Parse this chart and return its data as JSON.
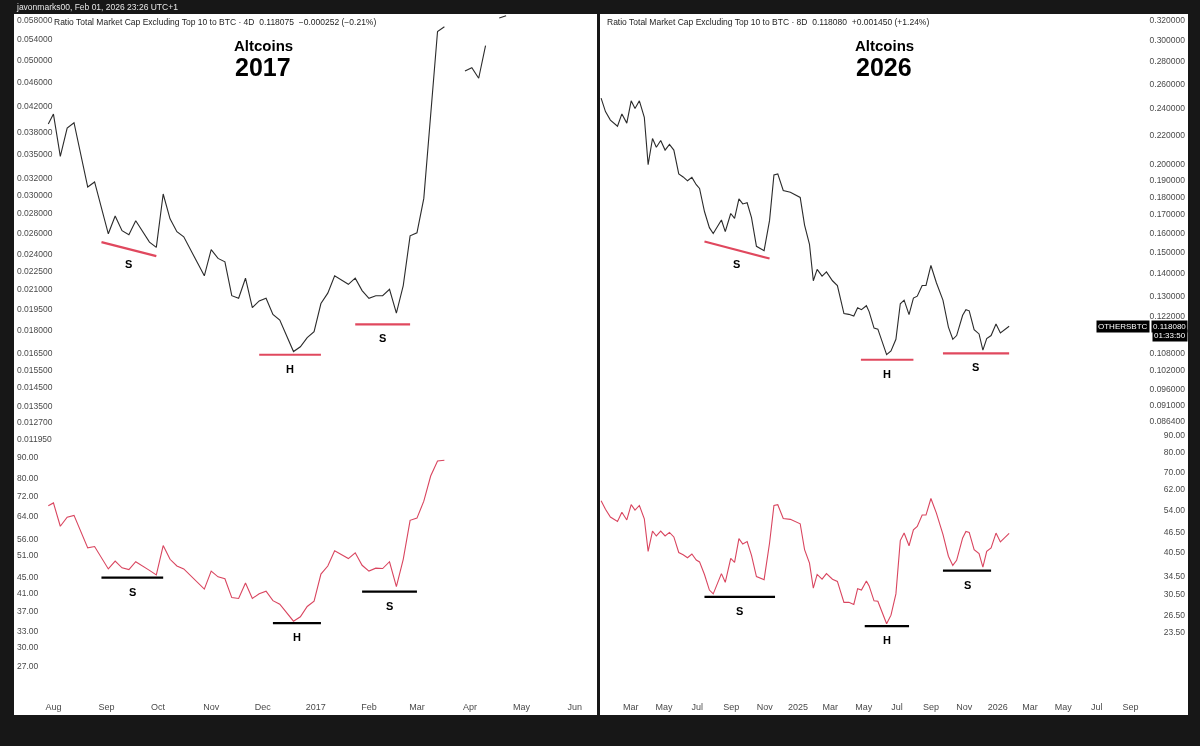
{
  "chart_data": [
    {
      "type": "line",
      "title": "Altcoins",
      "subtitle": "2017",
      "log": true,
      "grid": false,
      "tick_labels": "y",
      "xlim": [
        "2016-07-09",
        "2017-06-14"
      ],
      "ylim": [
        0.01162,
        0.0594
      ],
      "yticks": [
        {
          "value": 0.058,
          "label": "0.058000"
        },
        {
          "value": 0.054,
          "label": "0.054000"
        },
        {
          "value": 0.05,
          "label": "0.050000"
        },
        {
          "value": 0.046,
          "label": "0.046000"
        },
        {
          "value": 0.042,
          "label": "0.042000"
        },
        {
          "value": 0.038,
          "label": "0.038000"
        },
        {
          "value": 0.035,
          "label": "0.035000"
        },
        {
          "value": 0.032,
          "label": "0.032000"
        },
        {
          "value": 0.03,
          "label": "0.030000"
        },
        {
          "value": 0.028,
          "label": "0.028000"
        },
        {
          "value": 0.026,
          "label": "0.026000"
        },
        {
          "value": 0.024,
          "label": "0.024000"
        },
        {
          "value": 0.0225,
          "label": "0.022500"
        },
        {
          "value": 0.021,
          "label": "0.021000"
        },
        {
          "value": 0.0195,
          "label": "0.019500"
        },
        {
          "value": 0.018,
          "label": "0.018000"
        },
        {
          "value": 0.0165,
          "label": "0.016500"
        },
        {
          "value": 0.0155,
          "label": "0.015500"
        },
        {
          "value": 0.0145,
          "label": "0.014500"
        },
        {
          "value": 0.0135,
          "label": "0.013500"
        },
        {
          "value": 0.0127,
          "label": "0.012700"
        },
        {
          "value": 0.01195,
          "label": "0.011950"
        }
      ],
      "x": [
        "2016-07-29",
        "2016-08-01",
        "2016-08-05",
        "2016-08-09",
        "2016-08-13",
        "2016-08-21",
        "2016-08-25",
        "2016-09-02",
        "2016-09-06",
        "2016-09-10",
        "2016-09-14",
        "2016-09-18",
        "2016-09-26",
        "2016-09-30",
        "2016-10-04",
        "2016-10-08",
        "2016-10-12",
        "2016-10-16",
        "2016-10-28",
        "2016-11-01",
        "2016-11-05",
        "2016-11-09",
        "2016-11-13",
        "2016-11-17",
        "2016-11-21",
        "2016-11-25",
        "2016-11-29",
        "2016-12-03",
        "2016-12-07",
        "2016-12-11",
        "2016-12-19",
        "2016-12-23",
        "2016-12-27",
        "2016-12-31",
        "2017-01-04",
        "2017-01-08",
        "2017-01-12",
        "2017-01-20",
        "2017-01-24",
        "2017-01-28",
        "2017-02-01",
        "2017-02-05",
        "2017-02-09",
        "2017-02-13",
        "2017-02-17",
        "2017-02-21",
        "2017-02-25",
        "2017-03-01",
        "2017-03-05",
        "2017-03-13",
        "2017-03-17",
        "2017-03-21",
        "2017-03-25",
        "2017-03-29",
        "2017-04-02",
        "2017-04-06",
        "2017-04-10",
        "2017-04-14",
        "2017-04-18",
        "2017-04-22"
      ],
      "series": [
        {
          "color": "#2b2b2b",
          "values": [
            0.0392,
            0.0407,
            0.0347,
            0.0386,
            0.0394,
            0.0309,
            0.0315,
            0.0259,
            0.0277,
            0.0262,
            0.0258,
            0.0272,
            0.0251,
            0.0246,
            0.0301,
            0.0274,
            0.0261,
            0.0256,
            0.0221,
            0.0244,
            0.0236,
            0.0233,
            0.0205,
            0.0203,
            0.0219,
            0.0196,
            0.0201,
            0.0203,
            0.0191,
            0.0187,
            0.0166,
            0.0169,
            0.0175,
            0.0179,
            0.0199,
            0.0207,
            0.0221,
            0.0214,
            0.0219,
            0.0209,
            0.0203,
            0.0205,
            0.0205,
            0.021,
            0.0192,
            0.0213,
            0.0257,
            0.026,
            0.0296,
            0.0556,
            0.0566,
            null,
            null,
            0.0479,
            0.0485,
            0.0466,
            0.0527,
            null,
            0.0585,
            0.059
          ]
        },
        {
          "type": "line",
          "color": "#e0485e",
          "x": [
            "2016-08-29",
            "2016-09-30"
          ],
          "values": [
            0.0251,
            0.0238
          ]
        },
        {
          "type": "line",
          "color": "#e0485e",
          "x": [
            "2016-11-29",
            "2017-01-04"
          ],
          "values": [
            0.0164,
            0.0164
          ]
        },
        {
          "type": "line",
          "color": "#e0485e",
          "x": [
            "2017-01-24",
            "2017-02-25"
          ],
          "values": [
            0.0184,
            0.0184
          ]
        }
      ],
      "annotations": [
        "javonmarks00, Feb 01, 2026 23:26 UTC+1",
        "Ratio Total Market Cap Excluding Top 10 to BTC · 4D  0.118075  −0.000252 (−0.21%)",
        {
          "text": "S",
          "x": "2016-09-14",
          "y": 0.0244
        },
        {
          "text": "H",
          "x": "2016-12-17",
          "y": 0.0164
        },
        {
          "text": "S",
          "x": "2017-02-09",
          "y": 0.0184
        }
      ]
    },
    {
      "type": "line",
      "log": true,
      "grid": false,
      "xlim": [
        "2016-07-09",
        "2017-06-14"
      ],
      "ylim": [
        20.3,
        96
      ],
      "xticks": [
        {
          "value": "2016-08-01",
          "label": "Aug"
        },
        {
          "value": "2016-09-01",
          "label": "Sep"
        },
        {
          "value": "2016-10-01",
          "label": "Oct"
        },
        {
          "value": "2016-11-01",
          "label": "Nov"
        },
        {
          "value": "2016-12-01",
          "label": "Dec"
        },
        {
          "value": "2017-01-01",
          "label": "2017"
        },
        {
          "value": "2017-02-01",
          "label": "Feb"
        },
        {
          "value": "2017-03-01",
          "label": "Mar"
        },
        {
          "value": "2017-04-01",
          "label": "Apr"
        },
        {
          "value": "2017-05-01",
          "label": "May"
        },
        {
          "value": "2017-06-01",
          "label": "Jun"
        }
      ],
      "yticks": [
        {
          "value": 90,
          "label": "90.00"
        },
        {
          "value": 80,
          "label": "80.00"
        },
        {
          "value": 72,
          "label": "72.00"
        },
        {
          "value": 64,
          "label": "64.00"
        },
        {
          "value": 56,
          "label": "56.00"
        },
        {
          "value": 51,
          "label": "51.00"
        },
        {
          "value": 45,
          "label": "45.00"
        },
        {
          "value": 41,
          "label": "41.00"
        },
        {
          "value": 37,
          "label": "37.00"
        },
        {
          "value": 33,
          "label": "33.00"
        },
        {
          "value": 30,
          "label": "30.00"
        },
        {
          "value": 27,
          "label": "27.00"
        }
      ],
      "x": [
        "2016-07-29",
        "2016-08-01",
        "2016-08-05",
        "2016-08-09",
        "2016-08-13",
        "2016-08-21",
        "2016-08-25",
        "2016-09-02",
        "2016-09-06",
        "2016-09-10",
        "2016-09-14",
        "2016-09-18",
        "2016-09-26",
        "2016-09-30",
        "2016-10-04",
        "2016-10-08",
        "2016-10-12",
        "2016-10-16",
        "2016-10-28",
        "2016-11-01",
        "2016-11-05",
        "2016-11-09",
        "2016-11-13",
        "2016-11-17",
        "2016-11-21",
        "2016-11-25",
        "2016-11-29",
        "2016-12-03",
        "2016-12-07",
        "2016-12-11",
        "2016-12-19",
        "2016-12-23",
        "2016-12-27",
        "2016-12-31",
        "2017-01-04",
        "2017-01-08",
        "2017-01-12",
        "2017-01-20",
        "2017-01-24",
        "2017-01-28",
        "2017-02-01",
        "2017-02-05",
        "2017-02-09",
        "2017-02-13",
        "2017-02-17",
        "2017-02-21",
        "2017-02-25",
        "2017-03-01",
        "2017-03-05",
        "2017-03-09",
        "2017-03-13",
        "2017-03-17"
      ],
      "series": [
        {
          "color": "#d9455f",
          "values": [
            68.0,
            69.1,
            60.4,
            63.6,
            64.3,
            53.3,
            53.7,
            47.2,
            49.4,
            47.5,
            47.0,
            49.2,
            46.8,
            45.6,
            54.0,
            49.9,
            48.0,
            47.2,
            42.0,
            46.6,
            45.1,
            44.6,
            40.0,
            39.8,
            43.5,
            39.8,
            40.9,
            41.5,
            39.3,
            38.5,
            34.9,
            35.8,
            38.0,
            39.2,
            45.8,
            48.0,
            52.4,
            50.1,
            51.8,
            48.2,
            46.6,
            47.4,
            47.3,
            49.2,
            42.6,
            49.9,
            62.5,
            63.3,
            69.8,
            80.7,
            88.0,
            88.4
          ]
        },
        {
          "type": "line",
          "color": "#000000",
          "x": [
            "2016-08-29",
            "2016-10-04"
          ],
          "values": [
            44.9,
            44.9
          ]
        },
        {
          "type": "line",
          "color": "#000000",
          "x": [
            "2016-12-07",
            "2017-01-04"
          ],
          "values": [
            34.5,
            34.5
          ]
        },
        {
          "type": "line",
          "color": "#000000",
          "x": [
            "2017-01-28",
            "2017-03-01"
          ],
          "values": [
            41.4,
            41.4
          ]
        }
      ],
      "annotations": [
        {
          "text": "S",
          "x": "2016-09-16",
          "y": 44.9
        },
        {
          "text": "H",
          "x": "2016-12-21",
          "y": 34.5
        },
        {
          "text": "S",
          "x": "2017-02-13",
          "y": 41.4
        }
      ]
    },
    {
      "type": "line",
      "title": "Altcoins",
      "subtitle": "2026",
      "log": true,
      "grid": false,
      "tick_labels": "y",
      "xlim": [
        "2024-01-05",
        "2026-12-15"
      ],
      "ylim": [
        0.0845,
        0.3268
      ],
      "yticks": [
        {
          "value": 0.32,
          "label": "0.320000"
        },
        {
          "value": 0.3,
          "label": "0.300000"
        },
        {
          "value": 0.28,
          "label": "0.280000"
        },
        {
          "value": 0.26,
          "label": "0.260000"
        },
        {
          "value": 0.24,
          "label": "0.240000"
        },
        {
          "value": 0.22,
          "label": "0.220000"
        },
        {
          "value": 0.2,
          "label": "0.200000"
        },
        {
          "value": 0.19,
          "label": "0.190000"
        },
        {
          "value": 0.18,
          "label": "0.180000"
        },
        {
          "value": 0.17,
          "label": "0.170000"
        },
        {
          "value": 0.16,
          "label": "0.160000"
        },
        {
          "value": 0.15,
          "label": "0.150000"
        },
        {
          "value": 0.14,
          "label": "0.140000"
        },
        {
          "value": 0.13,
          "label": "0.130000"
        },
        {
          "value": 0.122,
          "label": "0.122000"
        },
        {
          "value": 0.108,
          "label": "0.108000"
        },
        {
          "value": 0.102,
          "label": "0.102000"
        },
        {
          "value": 0.096,
          "label": "0.096000"
        },
        {
          "value": 0.091,
          "label": "0.091000"
        },
        {
          "value": 0.0864,
          "label": "0.086400"
        }
      ],
      "x": [
        "2024-01-07",
        "2024-01-15",
        "2024-01-24",
        "2024-02-06",
        "2024-02-14",
        "2024-02-23",
        "2024-03-02",
        "2024-03-09",
        "2024-03-17",
        "2024-03-26",
        "2024-04-02",
        "2024-04-10",
        "2024-04-17",
        "2024-04-25",
        "2024-05-03",
        "2024-05-11",
        "2024-05-19",
        "2024-05-28",
        "2024-06-05",
        "2024-06-13",
        "2024-06-21",
        "2024-06-29",
        "2024-07-05",
        "2024-07-14",
        "2024-07-23",
        "2024-07-30",
        "2024-08-14",
        "2024-08-21",
        "2024-08-31",
        "2024-09-07",
        "2024-09-15",
        "2024-09-22",
        "2024-09-30",
        "2024-10-08",
        "2024-10-17",
        "2024-10-31",
        "2024-11-10",
        "2024-11-18",
        "2024-11-25",
        "2024-12-05",
        "2024-12-18",
        "2025-01-05",
        "2025-01-13",
        "2025-01-22",
        "2025-01-29",
        "2025-02-05",
        "2025-02-14",
        "2025-02-22",
        "2025-03-05",
        "2025-03-14",
        "2025-03-26",
        "2025-04-04",
        "2025-04-13",
        "2025-04-20",
        "2025-04-27",
        "2025-05-06",
        "2025-05-11",
        "2025-05-20",
        "2025-05-27",
        "2025-06-12",
        "2025-06-20",
        "2025-06-29",
        "2025-07-07",
        "2025-07-14",
        "2025-07-23",
        "2025-07-31",
        "2025-08-07",
        "2025-08-16",
        "2025-08-23",
        "2025-09-01",
        "2025-09-11",
        "2025-09-23",
        "2025-10-03",
        "2025-10-11",
        "2025-10-18",
        "2025-10-29",
        "2025-11-04",
        "2025-11-10",
        "2025-11-19",
        "2025-11-28",
        "2025-12-05",
        "2025-12-12",
        "2025-12-20",
        "2025-12-29",
        "2026-01-06",
        "2026-01-22"
      ],
      "series": [
        {
          "color": "#2b2b2b",
          "values": [
            0.2483,
            0.2376,
            0.2311,
            0.2265,
            0.2358,
            0.2288,
            0.2461,
            0.24,
            0.2461,
            0.2332,
            0.1998,
            0.2176,
            0.2114,
            0.2162,
            0.2095,
            0.2135,
            0.2095,
            0.1938,
            0.1919,
            0.1895,
            0.1916,
            0.1871,
            0.1848,
            0.1714,
            0.1626,
            0.1595,
            0.1667,
            0.1605,
            0.1703,
            0.1676,
            0.1786,
            0.1757,
            0.1764,
            0.168,
            0.153,
            0.1508,
            0.1665,
            0.1931,
            0.1938,
            0.1836,
            0.1825,
            0.1795,
            0.164,
            0.154,
            0.1367,
            0.1419,
            0.1388,
            0.1407,
            0.1367,
            0.1346,
            0.1228,
            0.1225,
            0.1218,
            0.1252,
            0.1244,
            0.126,
            0.1236,
            0.1171,
            0.1167,
            0.1074,
            0.1087,
            0.1129,
            0.1268,
            0.1283,
            0.1224,
            0.1292,
            0.13,
            0.1346,
            0.1346,
            0.1437,
            0.1358,
            0.1283,
            0.1175,
            0.1129,
            0.1143,
            0.1221,
            0.1244,
            0.1239,
            0.1165,
            0.1149,
            0.109,
            0.1132,
            0.1143,
            0.1187,
            0.1153,
            0.1178
          ]
        },
        {
          "type": "line",
          "color": "#e0485e",
          "x": [
            "2024-07-14",
            "2024-11-10"
          ],
          "values": [
            0.1554,
            0.147
          ]
        },
        {
          "type": "line",
          "color": "#e0485e",
          "x": [
            "2025-04-26",
            "2025-07-31"
          ],
          "values": [
            0.1056,
            0.1056
          ]
        },
        {
          "type": "line",
          "color": "#e0485e",
          "x": [
            "2025-09-23",
            "2026-01-22"
          ],
          "values": [
            0.1078,
            0.1078
          ]
        }
      ],
      "annotations": [
        "Ratio Total Market Cap Excluding Top 10 to BTC · 8D  0.118080  +0.001450 (+1.24%)",
        {
          "text": "S",
          "x": "2024-09-11",
          "y": 0.1512
        },
        {
          "text": "H",
          "x": "2025-06-13",
          "y": 0.1056
        },
        {
          "text": "S",
          "x": "2025-11-22",
          "y": 0.1078
        },
        "OTHERSBTC",
        "0.118080",
        "01:33:50"
      ]
    },
    {
      "type": "line",
      "log": true,
      "grid": false,
      "xlim": [
        "2024-01-05",
        "2026-12-15"
      ],
      "ylim": [
        13.4,
        94.1
      ],
      "xticks": [
        {
          "value": "2024-03-01",
          "label": "Mar"
        },
        {
          "value": "2024-05-01",
          "label": "May"
        },
        {
          "value": "2024-07-01",
          "label": "Jul"
        },
        {
          "value": "2024-09-01",
          "label": "Sep"
        },
        {
          "value": "2024-11-01",
          "label": "Nov"
        },
        {
          "value": "2025-01-01",
          "label": "2025"
        },
        {
          "value": "2025-03-01",
          "label": "Mar"
        },
        {
          "value": "2025-05-01",
          "label": "May"
        },
        {
          "value": "2025-07-01",
          "label": "Jul"
        },
        {
          "value": "2025-09-01",
          "label": "Sep"
        },
        {
          "value": "2025-11-01",
          "label": "Nov"
        },
        {
          "value": "2026-01-01",
          "label": "2026"
        },
        {
          "value": "2026-03-01",
          "label": "Mar"
        },
        {
          "value": "2026-05-01",
          "label": "May"
        },
        {
          "value": "2026-07-01",
          "label": "Jul"
        },
        {
          "value": "2026-09-01",
          "label": "Sep"
        }
      ],
      "yticks": [
        {
          "value": 90,
          "label": "90.00"
        },
        {
          "value": 80,
          "label": "80.00"
        },
        {
          "value": 70,
          "label": "70.00"
        },
        {
          "value": 62,
          "label": "62.00"
        },
        {
          "value": 54,
          "label": "54.00"
        },
        {
          "value": 46.5,
          "label": "46.50"
        },
        {
          "value": 40.5,
          "label": "40.50"
        },
        {
          "value": 34.5,
          "label": "34.50"
        },
        {
          "value": 30.5,
          "label": "30.50"
        },
        {
          "value": 26.5,
          "label": "26.50"
        },
        {
          "value": 23.5,
          "label": "23.50"
        }
      ],
      "x": [
        "2024-01-07",
        "2024-01-15",
        "2024-01-24",
        "2024-02-06",
        "2024-02-14",
        "2024-02-23",
        "2024-03-02",
        "2024-03-09",
        "2024-03-17",
        "2024-03-26",
        "2024-04-02",
        "2024-04-10",
        "2024-04-17",
        "2024-04-25",
        "2024-05-03",
        "2024-05-11",
        "2024-05-19",
        "2024-05-28",
        "2024-06-05",
        "2024-06-13",
        "2024-06-21",
        "2024-06-29",
        "2024-07-05",
        "2024-07-14",
        "2024-07-23",
        "2024-07-30",
        "2024-08-14",
        "2024-08-21",
        "2024-08-31",
        "2024-09-07",
        "2024-09-15",
        "2024-09-22",
        "2024-09-30",
        "2024-10-08",
        "2024-10-17",
        "2024-10-31",
        "2024-11-10",
        "2024-11-18",
        "2024-11-25",
        "2024-12-05",
        "2024-12-18",
        "2025-01-05",
        "2025-01-13",
        "2025-01-22",
        "2025-01-29",
        "2025-02-05",
        "2025-02-14",
        "2025-02-22",
        "2025-03-05",
        "2025-03-14",
        "2025-03-26",
        "2025-04-04",
        "2025-04-13",
        "2025-04-20",
        "2025-04-27",
        "2025-05-06",
        "2025-05-11",
        "2025-05-20",
        "2025-05-27",
        "2025-06-12",
        "2025-06-20",
        "2025-06-29",
        "2025-07-07",
        "2025-07-14",
        "2025-07-23",
        "2025-07-31",
        "2025-08-07",
        "2025-08-16",
        "2025-08-23",
        "2025-09-01",
        "2025-09-11",
        "2025-09-23",
        "2025-10-03",
        "2025-10-11",
        "2025-10-18",
        "2025-10-29",
        "2025-11-04",
        "2025-11-10",
        "2025-11-19",
        "2025-11-28",
        "2025-12-05",
        "2025-12-12",
        "2025-12-20",
        "2025-12-29",
        "2026-01-06",
        "2026-01-22"
      ],
      "series": [
        {
          "color": "#d9455f",
          "values": [
            57.4,
            54.2,
            51.4,
            49.9,
            53.1,
            50.4,
            55.9,
            53.9,
            55.6,
            50.8,
            40.7,
            46.7,
            45.2,
            46.7,
            45.2,
            46.3,
            44.9,
            40.4,
            39.8,
            39.0,
            40.0,
            38.4,
            37.9,
            34.8,
            31.3,
            30.5,
            35.0,
            33.0,
            38.8,
            37.8,
            44.4,
            42.8,
            43.5,
            39.6,
            34.3,
            33.6,
            43.1,
            55.6,
            55.9,
            50.9,
            50.6,
            49.1,
            41.2,
            37.6,
            31.7,
            34.8,
            33.7,
            35.0,
            33.7,
            33.2,
            28.8,
            28.8,
            28.4,
            31.6,
            31.3,
            33.3,
            32.2,
            29.1,
            29.0,
            24.9,
            26.4,
            30.5,
            43.8,
            46.1,
            42.3,
            47.1,
            48.2,
            52.1,
            52.1,
            58.3,
            52.8,
            45.7,
            39.4,
            37.0,
            38.3,
            44.6,
            46.6,
            46.3,
            41.2,
            40.1,
            36.6,
            40.7,
            41.7,
            46.1,
            43.4,
            46.0
          ]
        },
        {
          "type": "line",
          "color": "#000000",
          "x": [
            "2024-07-14",
            "2024-11-20"
          ],
          "values": [
            29.9,
            29.9
          ]
        },
        {
          "type": "line",
          "color": "#000000",
          "x": [
            "2025-05-03",
            "2025-07-23"
          ],
          "values": [
            24.5,
            24.5
          ]
        },
        {
          "type": "line",
          "color": "#000000",
          "x": [
            "2025-09-23",
            "2025-12-20"
          ],
          "values": [
            35.7,
            35.7
          ]
        }
      ],
      "annotations": [
        {
          "text": "S",
          "x": "2024-09-16",
          "y": 29.9
        },
        {
          "text": "H",
          "x": "2025-06-12",
          "y": 24.5
        },
        {
          "text": "S",
          "x": "2025-11-06",
          "y": 35.7
        }
      ]
    }
  ]
}
